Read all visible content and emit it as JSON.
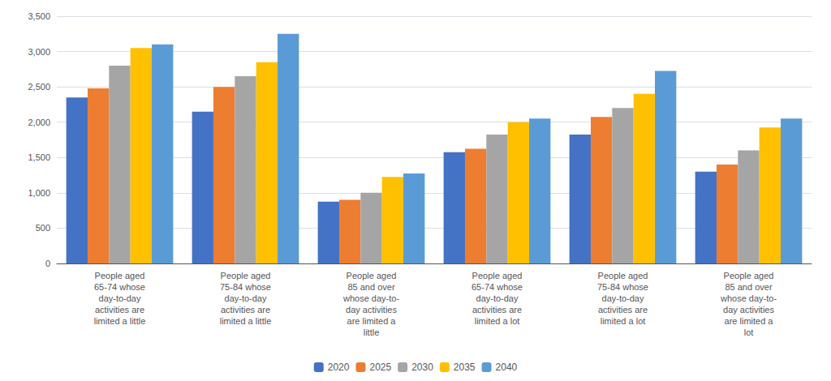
{
  "chart_data": {
    "type": "bar",
    "categories": [
      "People aged\n65-74 whose\nday-to-day\nactivities are\nlimited a little",
      "People aged\n75-84 whose\nday-to-day\nactivities are\nlimited a little",
      "People aged\n85 and over\nwhose day-to-\nday activities\nare limited a\nlittle",
      "People aged\n65-74 whose\nday-to-day\nactivities are\nlimited a lot",
      "People aged\n75-84 whose\nday-to-day\nactivities are\nlimited a lot",
      "People aged\n85 and over\nwhose day-to-\nday activities\nare limited a\nlot"
    ],
    "series": [
      {
        "name": "2020",
        "color": "#4472c4",
        "values": [
          2350,
          2150,
          875,
          1575,
          1825,
          1300
        ]
      },
      {
        "name": "2025",
        "color": "#ed7d31",
        "values": [
          2480,
          2500,
          900,
          1625,
          2075,
          1400
        ]
      },
      {
        "name": "2030",
        "color": "#a5a5a5",
        "values": [
          2800,
          2650,
          1000,
          1825,
          2200,
          1600
        ]
      },
      {
        "name": "2035",
        "color": "#ffc000",
        "values": [
          3050,
          2850,
          1225,
          2000,
          2400,
          1925
        ]
      },
      {
        "name": "2040",
        "color": "#5b9bd5",
        "values": [
          3100,
          3250,
          1275,
          2050,
          2725,
          2050
        ]
      }
    ],
    "ylim": [
      0,
      3500
    ],
    "yticks": [
      0,
      500,
      {
        "value": 1000,
        "label": "1,000"
      },
      {
        "value": 1500,
        "label": "1,500"
      },
      {
        "value": 2000,
        "label": "2,000"
      },
      {
        "value": 2500,
        "label": "2,500"
      },
      {
        "value": 3000,
        "label": "3,000"
      },
      {
        "value": 3500,
        "label": "3,500"
      }
    ],
    "grid": true,
    "legend": "bottom"
  }
}
